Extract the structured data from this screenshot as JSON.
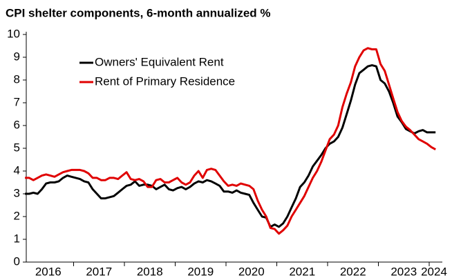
{
  "chart_data": {
    "type": "line",
    "title": "CPI shelter components, 6-month annualized %",
    "categories": [
      null,
      null,
      null,
      null,
      null,
      null,
      "2016",
      null,
      null,
      null,
      null,
      null,
      null,
      null,
      null,
      null,
      null,
      null,
      "2017",
      null,
      null,
      null,
      null,
      null,
      null,
      null,
      null,
      null,
      null,
      null,
      "2018",
      null,
      null,
      null,
      null,
      null,
      null,
      null,
      null,
      null,
      null,
      null,
      "2019",
      null,
      null,
      null,
      null,
      null,
      null,
      null,
      null,
      null,
      null,
      null,
      "2020",
      null,
      null,
      null,
      null,
      null,
      null,
      null,
      null,
      null,
      null,
      null,
      "2021",
      null,
      null,
      null,
      null,
      null,
      null,
      null,
      null,
      null,
      null,
      null,
      "2022",
      null,
      null,
      null,
      null,
      null,
      null,
      null,
      null,
      null,
      null,
      null,
      "2023",
      null,
      null,
      null,
      null,
      null,
      null,
      "2024"
    ],
    "series": [
      {
        "name": "Owners' Equivalent Rent",
        "color": "#000000",
        "values": [
          3.0,
          3.0,
          3.05,
          3.0,
          3.2,
          3.45,
          3.5,
          3.5,
          3.55,
          3.7,
          3.8,
          3.75,
          3.7,
          3.65,
          3.55,
          3.5,
          3.2,
          3.0,
          2.8,
          2.8,
          2.85,
          2.9,
          3.05,
          3.2,
          3.35,
          3.4,
          3.55,
          3.35,
          3.4,
          3.4,
          3.35,
          3.2,
          3.3,
          3.4,
          3.2,
          3.15,
          3.25,
          3.3,
          3.2,
          3.3,
          3.45,
          3.55,
          3.5,
          3.6,
          3.55,
          3.45,
          3.35,
          3.1,
          3.1,
          3.05,
          3.15,
          3.05,
          3.0,
          2.95,
          2.6,
          2.3,
          2.0,
          1.95,
          1.55,
          1.65,
          1.55,
          1.7,
          2.0,
          2.4,
          2.8,
          3.3,
          3.5,
          3.8,
          4.2,
          4.45,
          4.7,
          5.0,
          5.2,
          5.3,
          5.5,
          5.9,
          6.5,
          7.1,
          7.8,
          8.3,
          8.45,
          8.6,
          8.65,
          8.6,
          8.0,
          7.85,
          7.5,
          7.0,
          6.4,
          6.15,
          5.85,
          5.75,
          5.65,
          5.75,
          5.8,
          5.7,
          5.7,
          5.7
        ]
      },
      {
        "name": "Rent of Primary Residence",
        "color": "#e00000",
        "values": [
          3.7,
          3.7,
          3.6,
          3.7,
          3.8,
          3.85,
          3.8,
          3.75,
          3.85,
          3.95,
          4.0,
          4.05,
          4.05,
          4.05,
          4.0,
          3.9,
          3.7,
          3.7,
          3.6,
          3.6,
          3.7,
          3.7,
          3.65,
          3.8,
          3.95,
          3.65,
          3.6,
          3.65,
          3.55,
          3.3,
          3.3,
          3.6,
          3.65,
          3.5,
          3.5,
          3.6,
          3.7,
          3.5,
          3.4,
          3.5,
          3.8,
          4.0,
          3.7,
          4.05,
          4.1,
          4.05,
          3.8,
          3.55,
          3.35,
          3.4,
          3.35,
          3.45,
          3.4,
          3.35,
          3.2,
          2.7,
          2.3,
          2.0,
          1.5,
          1.45,
          1.25,
          1.4,
          1.6,
          2.0,
          2.3,
          2.6,
          2.9,
          3.3,
          3.7,
          4.0,
          4.4,
          4.9,
          5.4,
          5.6,
          6.0,
          6.8,
          7.4,
          7.9,
          8.6,
          9.0,
          9.3,
          9.4,
          9.35,
          9.35,
          8.7,
          8.4,
          7.8,
          7.2,
          6.6,
          6.2,
          5.95,
          5.8,
          5.6,
          5.4,
          5.3,
          5.2,
          5.05,
          4.95
        ]
      }
    ],
    "ylim": [
      0,
      10
    ],
    "yticks": [
      0,
      1,
      2,
      3,
      4,
      5,
      6,
      7,
      8,
      9,
      10
    ],
    "legend": "upper left",
    "grid": false
  }
}
